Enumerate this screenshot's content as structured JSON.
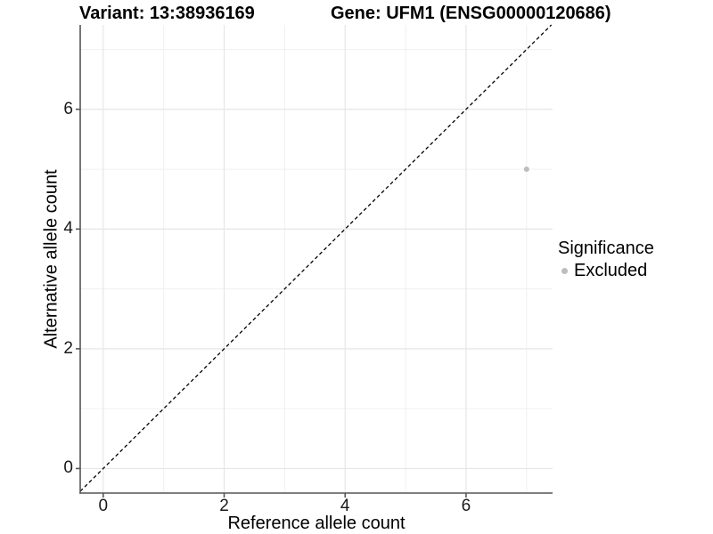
{
  "chart_data": {
    "type": "scatter",
    "title_left": "Variant: 13:38936169",
    "title_right": "Gene: UFM1 (ENSG00000120686)",
    "xlabel": "Reference allele count",
    "ylabel": "Alternative allele count",
    "xlim": [
      -0.38,
      7.43
    ],
    "ylim": [
      -0.41,
      7.41
    ],
    "x_ticks": [
      0,
      2,
      4,
      6
    ],
    "y_ticks": [
      0,
      2,
      4,
      6
    ],
    "x_minor_ticks": [
      1,
      3,
      5,
      7
    ],
    "y_minor_ticks": [
      1,
      3,
      5,
      7
    ],
    "grid": true,
    "points": [
      {
        "x": 7,
        "y": 5,
        "significance": "Excluded"
      }
    ],
    "identity_line": {
      "style": "dashed",
      "equation": "y = x"
    },
    "legend": {
      "position": "right",
      "title": "Significance",
      "items": [
        {
          "label": "Excluded",
          "color": "#bdbdbd"
        }
      ]
    },
    "colors": {
      "point": "#bdbdbd",
      "grid_major": "#e6e6e6",
      "grid_minor": "#f0f0f0",
      "axis": "#555555",
      "tick": "#555555",
      "identity_line": "#000000"
    }
  }
}
